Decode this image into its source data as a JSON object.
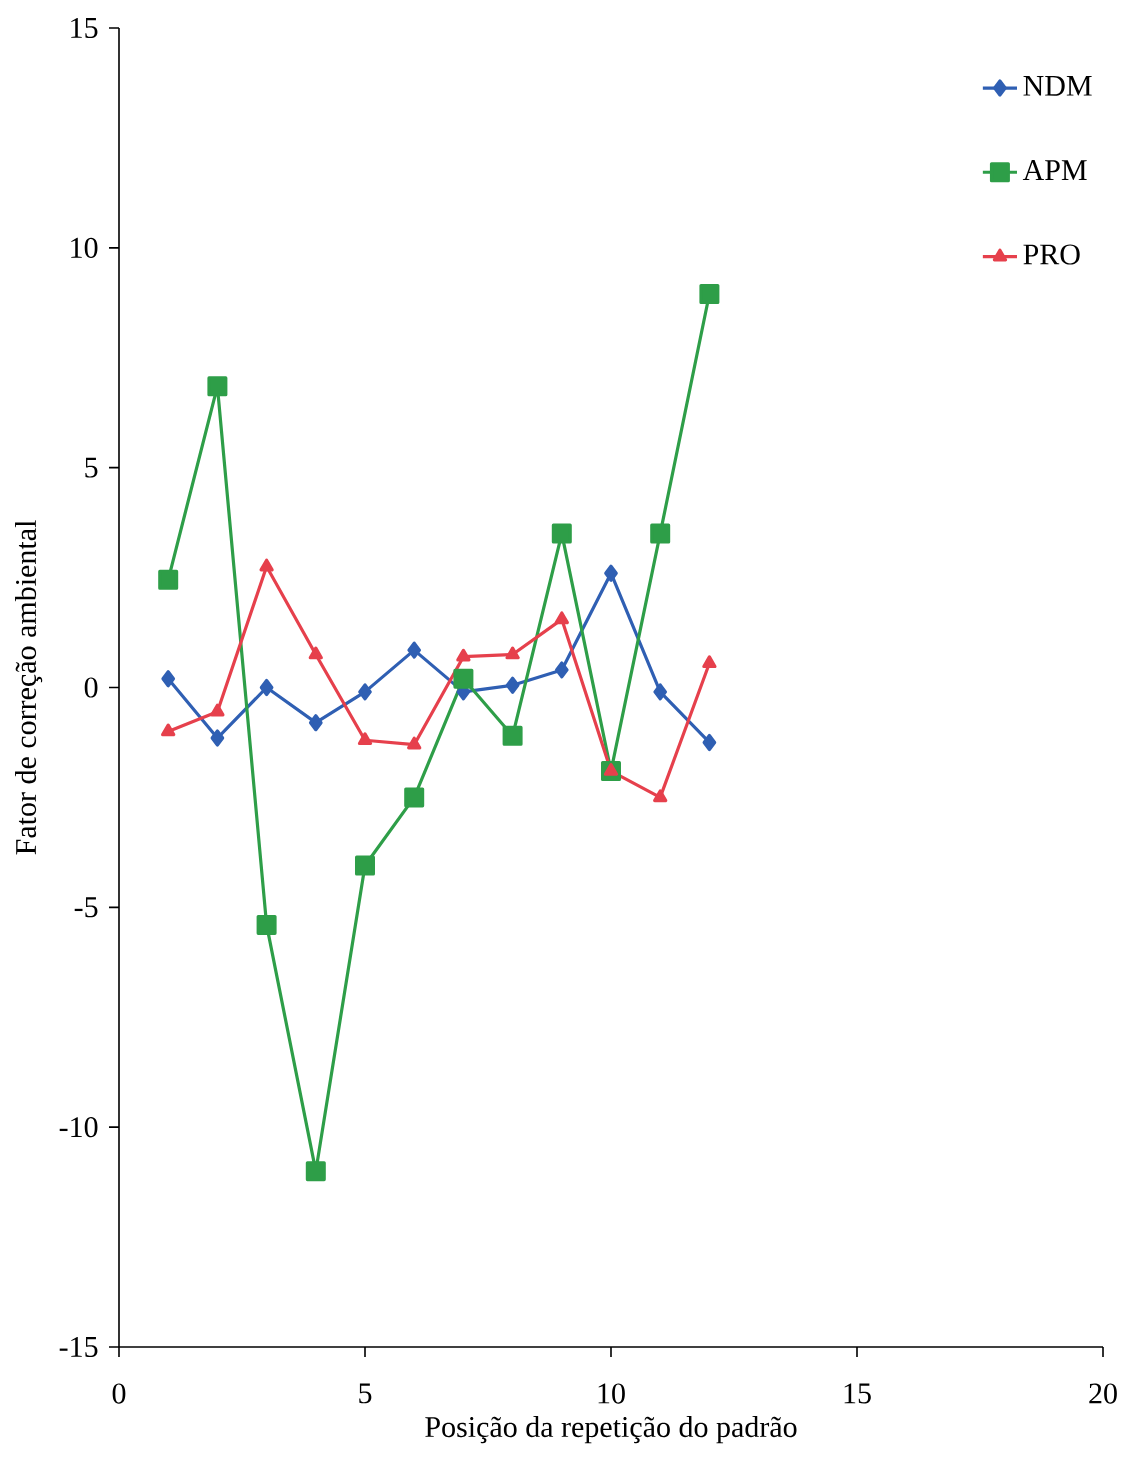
{
  "chart_data": {
    "type": "line",
    "xlabel": "Posição da repetição do padrão",
    "ylabel": "Fator de correção ambiental",
    "x": [
      1,
      2,
      3,
      4,
      5,
      6,
      7,
      8,
      9,
      10,
      11,
      12
    ],
    "xlim": [
      0,
      20
    ],
    "xticks": [
      0,
      5,
      10,
      15,
      20
    ],
    "ylim": [
      -15,
      15
    ],
    "yticks": [
      -15,
      -10,
      -5,
      0,
      5,
      10,
      15
    ],
    "grid": false,
    "legend": "top right",
    "line_style": "solid",
    "series": [
      {
        "name": "NDM",
        "color": "#2f5fb3",
        "marker": "diamond",
        "values": [
          0.2,
          -1.15,
          0,
          -0.8,
          -0.1,
          0.85,
          -0.1,
          0.05,
          0.4,
          2.6,
          -0.1,
          -1.25
        ]
      },
      {
        "name": "APM",
        "color": "#2e9e48",
        "marker": "square",
        "values": [
          2.45,
          6.85,
          -5.4,
          -11.0,
          -4.05,
          -2.5,
          0.2,
          -1.1,
          3.5,
          -1.9,
          3.5,
          8.95
        ]
      },
      {
        "name": "PRO",
        "color": "#e6404c",
        "marker": "triangle",
        "values": [
          -1.0,
          -0.55,
          2.75,
          0.75,
          -1.2,
          -1.3,
          0.7,
          0.75,
          1.55,
          -1.9,
          -2.5,
          0.55
        ]
      }
    ]
  }
}
